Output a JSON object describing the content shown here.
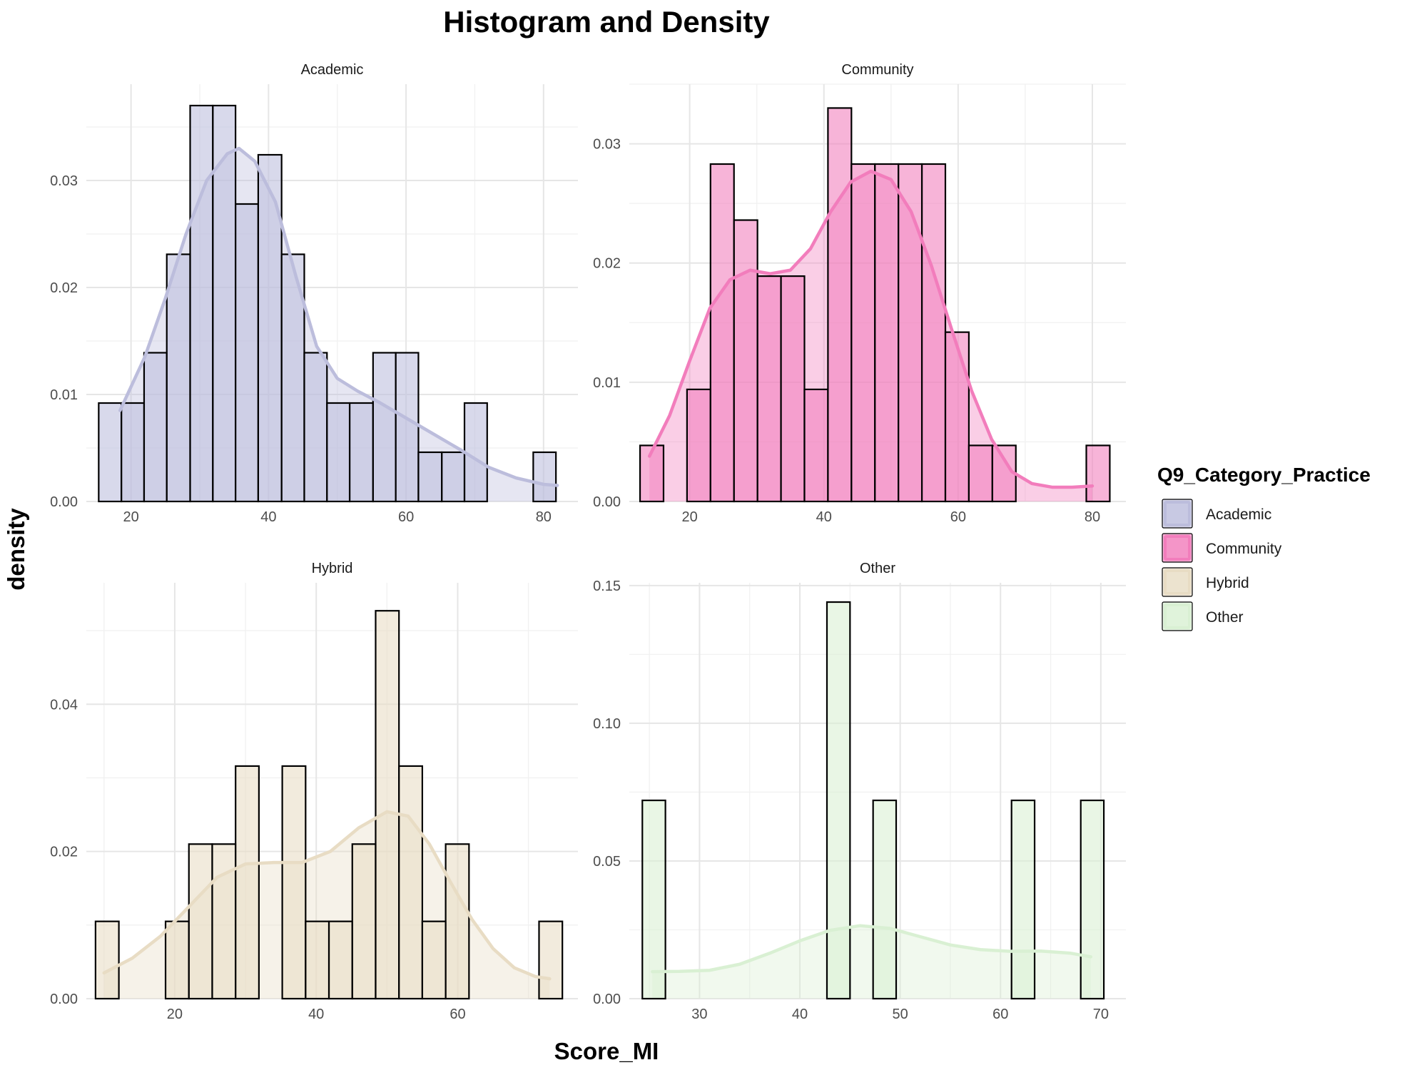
{
  "chart_data": {
    "type": "histogram",
    "title": "Histogram and Density",
    "xlabel": "Score_MI",
    "ylabel": "density",
    "grid": true,
    "legend": {
      "title": "Q9_Category_Practice",
      "placement": "right",
      "entries": [
        "Academic",
        "Community",
        "Hybrid",
        "Other"
      ]
    },
    "panels": [
      {
        "name": "Academic",
        "color": "#bcbddc",
        "xlim": [
          13.5,
          85
        ],
        "ylim": [
          0,
          0.039
        ],
        "xticks": [
          20,
          40,
          60,
          80
        ],
        "xtick_labels": [
          "20",
          "40",
          "60",
          "80"
        ],
        "yticks": [
          0,
          0.01,
          0.02,
          0.03
        ],
        "ytick_labels": [
          "0.00",
          "0.01",
          "0.02",
          "0.03"
        ],
        "bins": [
          [
            15.3,
            18.6,
            0.0092
          ],
          [
            18.6,
            21.9,
            0.0092
          ],
          [
            21.9,
            25.2,
            0.0139
          ],
          [
            25.2,
            28.6,
            0.0231
          ],
          [
            28.6,
            31.9,
            0.037
          ],
          [
            31.9,
            35.2,
            0.037
          ],
          [
            35.2,
            38.5,
            0.0278
          ],
          [
            38.5,
            41.9,
            0.0324
          ],
          [
            41.9,
            45.2,
            0.0231
          ],
          [
            45.2,
            48.5,
            0.0139
          ],
          [
            48.5,
            51.8,
            0.0092
          ],
          [
            51.8,
            55.2,
            0.0092
          ],
          [
            55.2,
            58.5,
            0.0139
          ],
          [
            58.5,
            61.8,
            0.0139
          ],
          [
            61.8,
            65.2,
            0.0046
          ],
          [
            65.2,
            68.5,
            0.0046
          ],
          [
            68.5,
            71.8,
            0.0092
          ],
          [
            71.8,
            75.2,
            0
          ],
          [
            75.2,
            78.5,
            0
          ],
          [
            78.5,
            81.8,
            0.0046
          ]
        ],
        "density_x": [
          18.4,
          22,
          25,
          28,
          31,
          34,
          35.7,
          38,
          41,
          44,
          47,
          50,
          53,
          56,
          60,
          64,
          68,
          72,
          76,
          80,
          82
        ],
        "density_y": [
          0.0085,
          0.0135,
          0.019,
          0.025,
          0.03,
          0.0325,
          0.033,
          0.0318,
          0.028,
          0.021,
          0.0145,
          0.0115,
          0.0103,
          0.0093,
          0.0078,
          0.0063,
          0.0048,
          0.0032,
          0.0022,
          0.0016,
          0.0015
        ]
      },
      {
        "name": "Community",
        "color": "#f27dbc",
        "xlim": [
          11,
          85
        ],
        "ylim": [
          0,
          0.035
        ],
        "xticks": [
          20,
          40,
          60,
          80
        ],
        "xtick_labels": [
          "20",
          "40",
          "60",
          "80"
        ],
        "yticks": [
          0,
          0.01,
          0.02,
          0.03
        ],
        "ytick_labels": [
          "0.00",
          "0.01",
          "0.02",
          "0.03"
        ],
        "bins": [
          [
            12.6,
            16.1,
            0.0047
          ],
          [
            16.1,
            19.6,
            0
          ],
          [
            19.6,
            23.1,
            0.0094
          ],
          [
            23.1,
            26.6,
            0.0283
          ],
          [
            26.6,
            30.1,
            0.0236
          ],
          [
            30.1,
            33.6,
            0.0189
          ],
          [
            33.6,
            37.1,
            0.0189
          ],
          [
            37.1,
            40.6,
            0.0094
          ],
          [
            40.6,
            44.1,
            0.033
          ],
          [
            44.1,
            47.6,
            0.0283
          ],
          [
            47.6,
            51.1,
            0.0283
          ],
          [
            51.1,
            54.6,
            0.0283
          ],
          [
            54.6,
            58.1,
            0.0283
          ],
          [
            58.1,
            61.6,
            0.0142
          ],
          [
            61.6,
            65.1,
            0.0047
          ],
          [
            65.1,
            68.6,
            0.0047
          ],
          [
            68.6,
            72.1,
            0
          ],
          [
            72.1,
            75.6,
            0
          ],
          [
            75.6,
            79.1,
            0
          ],
          [
            79.1,
            82.6,
            0.0047
          ]
        ],
        "density_x": [
          14,
          17,
          20,
          23,
          26,
          29,
          32,
          35,
          38,
          41,
          44,
          47,
          50,
          53,
          56,
          59,
          62,
          65,
          68,
          71,
          74,
          77,
          80
        ],
        "density_y": [
          0.0038,
          0.0072,
          0.0118,
          0.0162,
          0.0186,
          0.0194,
          0.0191,
          0.0194,
          0.0212,
          0.0243,
          0.0268,
          0.0277,
          0.027,
          0.0243,
          0.0198,
          0.0145,
          0.0093,
          0.0052,
          0.0025,
          0.0015,
          0.0012,
          0.0012,
          0.0013
        ]
      },
      {
        "name": "Hybrid",
        "color": "#e8dcc4",
        "xlim": [
          7.5,
          77
        ],
        "ylim": [
          0,
          0.0565
        ],
        "xticks": [
          20,
          40,
          60
        ],
        "xtick_labels": [
          "20",
          "40",
          "60"
        ],
        "yticks": [
          0,
          0.02,
          0.04
        ],
        "ytick_labels": [
          "0.00",
          "0.02",
          "0.04"
        ],
        "bins": [
          [
            8.8,
            12.1,
            0.0105
          ],
          [
            12.1,
            15.4,
            0
          ],
          [
            15.4,
            18.7,
            0
          ],
          [
            18.7,
            22.0,
            0.0105
          ],
          [
            22.0,
            25.3,
            0.021
          ],
          [
            25.3,
            28.6,
            0.021
          ],
          [
            28.6,
            31.9,
            0.0316
          ],
          [
            31.9,
            35.2,
            0
          ],
          [
            35.2,
            38.5,
            0.0316
          ],
          [
            38.5,
            41.8,
            0.0105
          ],
          [
            41.8,
            45.1,
            0.0105
          ],
          [
            45.1,
            48.4,
            0.021
          ],
          [
            48.4,
            51.7,
            0.0527
          ],
          [
            51.7,
            55.0,
            0.0316
          ],
          [
            55.0,
            58.3,
            0.0105
          ],
          [
            58.3,
            61.6,
            0.021
          ],
          [
            61.6,
            64.9,
            0
          ],
          [
            64.9,
            68.2,
            0
          ],
          [
            68.2,
            71.5,
            0
          ],
          [
            71.5,
            74.8,
            0.0105
          ]
        ],
        "density_x": [
          10,
          14,
          18,
          22,
          26,
          30,
          34,
          38,
          42,
          46,
          50,
          53,
          56,
          59,
          62,
          65,
          68,
          71,
          73
        ],
        "density_y": [
          0.0035,
          0.0055,
          0.0085,
          0.0125,
          0.0165,
          0.0183,
          0.0185,
          0.0185,
          0.02,
          0.0232,
          0.0254,
          0.0248,
          0.021,
          0.0158,
          0.0108,
          0.0068,
          0.0042,
          0.003,
          0.0027
        ]
      },
      {
        "name": "Other",
        "color": "#d9f0d3",
        "xlim": [
          23,
          72.5
        ],
        "ylim": [
          0,
          0.151
        ],
        "xticks": [
          30,
          40,
          50,
          60,
          70
        ],
        "xtick_labels": [
          "30",
          "40",
          "50",
          "60",
          "70"
        ],
        "yticks": [
          0,
          0.05,
          0.1,
          0.15
        ],
        "ytick_labels": [
          "0.00",
          "0.05",
          "0.10",
          "0.15"
        ],
        "bins": [
          [
            24.3,
            26.6,
            0.072
          ],
          [
            26.6,
            28.9,
            0
          ],
          [
            28.9,
            31.2,
            0
          ],
          [
            31.2,
            33.5,
            0
          ],
          [
            33.5,
            35.8,
            0
          ],
          [
            35.8,
            38.1,
            0
          ],
          [
            38.1,
            40.4,
            0
          ],
          [
            40.4,
            42.7,
            0
          ],
          [
            42.7,
            45.0,
            0.144
          ],
          [
            45.0,
            47.3,
            0
          ],
          [
            47.3,
            49.6,
            0.072
          ],
          [
            49.6,
            51.9,
            0
          ],
          [
            51.9,
            54.2,
            0
          ],
          [
            54.2,
            56.5,
            0
          ],
          [
            56.5,
            58.8,
            0
          ],
          [
            58.8,
            61.1,
            0
          ],
          [
            61.1,
            63.4,
            0.072
          ],
          [
            63.4,
            65.7,
            0
          ],
          [
            65.7,
            68.0,
            0
          ],
          [
            68.0,
            70.3,
            0.072
          ]
        ],
        "density_x": [
          25.3,
          28,
          31,
          34,
          37,
          40,
          43,
          46,
          49,
          52,
          55,
          58,
          61,
          64,
          67,
          69
        ],
        "density_y": [
          0.0098,
          0.0099,
          0.0103,
          0.0125,
          0.0165,
          0.021,
          0.0248,
          0.0265,
          0.0255,
          0.0225,
          0.0195,
          0.0178,
          0.0172,
          0.0173,
          0.0165,
          0.0152
        ]
      }
    ]
  }
}
